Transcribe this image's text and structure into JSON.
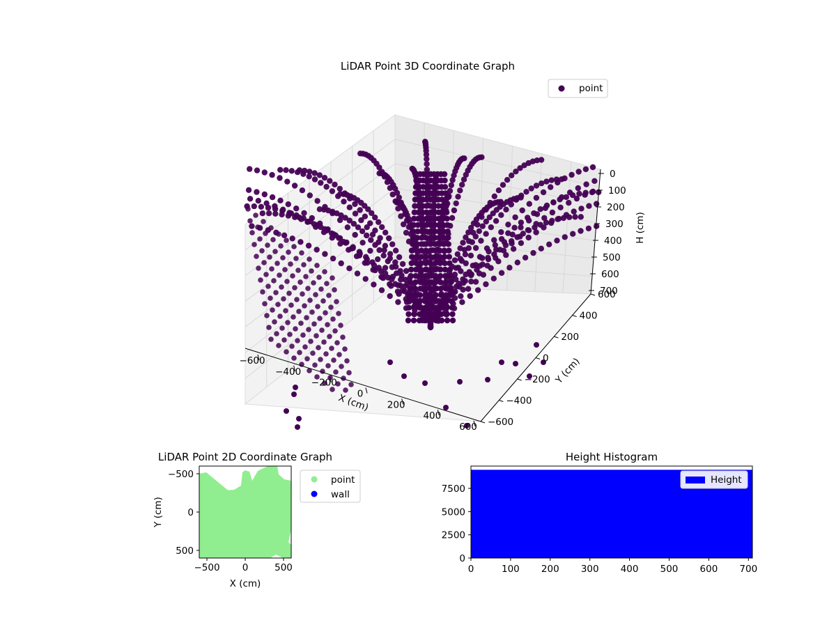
{
  "colors": {
    "point3d": "#440154",
    "point2d": "#90ee90",
    "wall": "#0000ff",
    "histogram": "#0000ff"
  },
  "chart_data": [
    {
      "type": "scatter",
      "projection": "3d",
      "title": "LiDAR Point 3D Coordinate Graph",
      "xlabel": "X (cm)",
      "ylabel": "Y (cm)",
      "zlabel": "H (cm)",
      "xlim": [
        -600,
        600
      ],
      "ylim": [
        -600,
        600
      ],
      "zlim": [
        700,
        0
      ],
      "x_ticks": [
        "−600",
        "−400",
        "−200",
        "0",
        "200",
        "400",
        "600"
      ],
      "y_ticks": [
        "−600",
        "−400",
        "−200",
        "0",
        "200",
        "400",
        "600"
      ],
      "z_ticks": [
        "0",
        "100",
        "200",
        "300",
        "400",
        "500",
        "600",
        "700"
      ],
      "legend": {
        "placement": "upper-right",
        "entries": [
          "point"
        ]
      },
      "series": [
        {
          "name": "point",
          "note_points": "thousands of points arranged on curved arcs radiating from a central origin"
        }
      ]
    },
    {
      "type": "scatter",
      "title": "LiDAR Point 2D Coordinate Graph",
      "xlabel": "X (cm)",
      "ylabel": "Y (cm)",
      "xlim": [
        -600,
        600
      ],
      "ylim": [
        -600,
        600
      ],
      "x_ticks": [
        "−500",
        "0",
        "500"
      ],
      "y_ticks": [
        "−500",
        "0",
        "500"
      ],
      "legend": {
        "placement": "outside-right",
        "entries": [
          "point",
          "wall"
        ]
      },
      "series": [
        {
          "name": "point",
          "region": "dense filled area covering most of the plot"
        },
        {
          "name": "wall",
          "values": []
        }
      ]
    },
    {
      "type": "bar",
      "title": "Height Histogram",
      "xlim": [
        0,
        710
      ],
      "ylim": [
        0,
        9900
      ],
      "x_ticks": [
        "0",
        "100",
        "200",
        "300",
        "400",
        "500",
        "600",
        "700"
      ],
      "y_ticks": [
        "0",
        "2500",
        "5000",
        "7500"
      ],
      "legend": {
        "placement": "upper-right",
        "entries": [
          "Height"
        ]
      },
      "series": [
        {
          "name": "Height",
          "x_range": [
            0,
            710
          ],
          "value": 9500
        }
      ]
    }
  ]
}
